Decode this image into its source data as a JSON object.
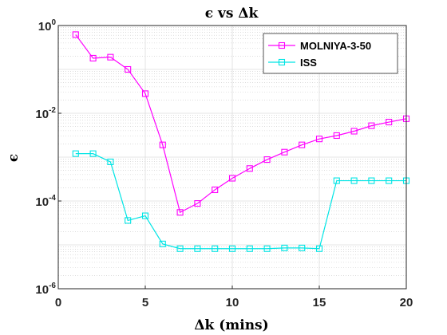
{
  "chart_data": {
    "type": "line",
    "title": "ϵ vs Δk",
    "xlabel": "Δk (mins)",
    "ylabel": "ϵ",
    "xlim": [
      0,
      20
    ],
    "ylim": [
      1e-06,
      1
    ],
    "yscale": "log",
    "grid": true,
    "legend_position": "top-right",
    "x_ticks": [
      0,
      5,
      10,
      15,
      20
    ],
    "y_ticks": [
      {
        "base": "10",
        "exp": "0",
        "value": 1
      },
      {
        "base": "10",
        "exp": "-2",
        "value": 0.01
      },
      {
        "base": "10",
        "exp": "-4",
        "value": 0.0001
      },
      {
        "base": "10",
        "exp": "-6",
        "value": 1e-06
      }
    ],
    "x": [
      1,
      2,
      3,
      4,
      5,
      6,
      7,
      8,
      9,
      10,
      11,
      12,
      13,
      14,
      15,
      16,
      17,
      18,
      19,
      20
    ],
    "series": [
      {
        "name": "MOLNIYA-3-50",
        "color": "#ff00ff",
        "marker": "square",
        "values": [
          0.62,
          0.18,
          0.19,
          0.1,
          0.028,
          0.0019,
          5.5e-05,
          8.8e-05,
          0.00018,
          0.00033,
          0.00055,
          0.00088,
          0.0013,
          0.0019,
          0.0026,
          0.0031,
          0.0039,
          0.0052,
          0.0063,
          0.0075
        ]
      },
      {
        "name": "ISS",
        "color": "#00e5e5",
        "marker": "square",
        "values": [
          0.0012,
          0.0012,
          0.00078,
          3.6e-05,
          4.6e-05,
          1.05e-05,
          8.2e-06,
          8.2e-06,
          8.2e-06,
          8.2e-06,
          8.2e-06,
          8.2e-06,
          8.5e-06,
          8.5e-06,
          8.2e-06,
          0.00029,
          0.00029,
          0.00029,
          0.00029,
          0.00029
        ]
      }
    ]
  }
}
